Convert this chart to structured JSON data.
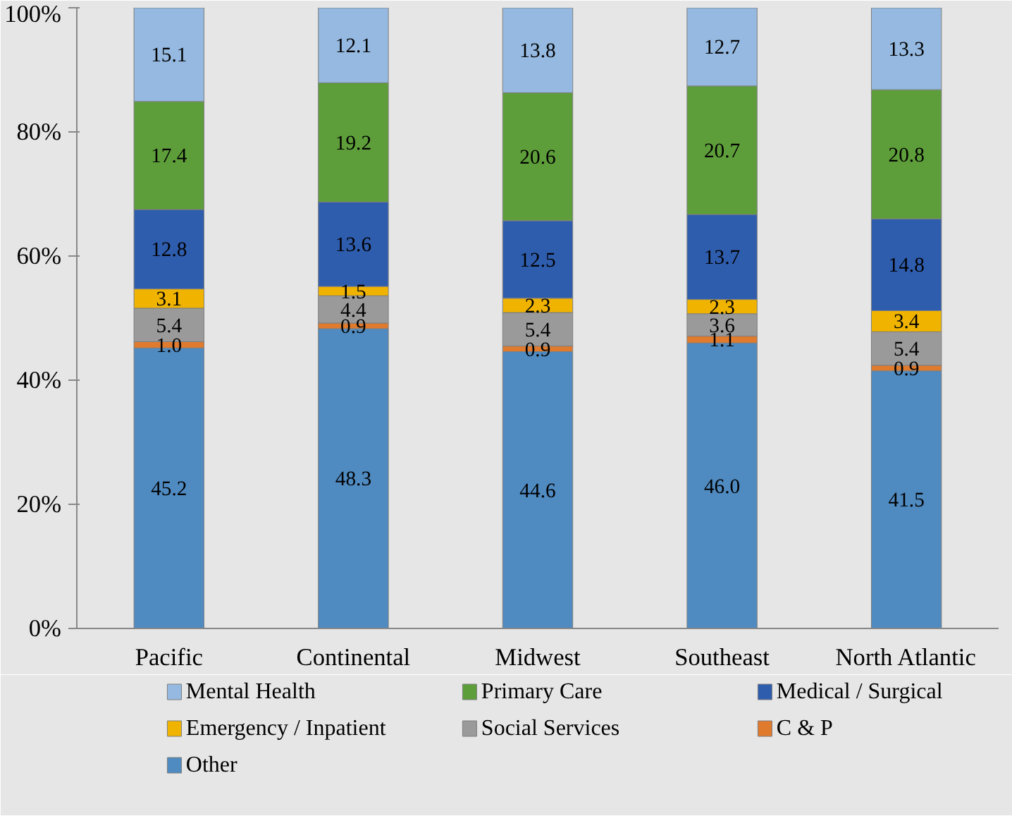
{
  "chart_data": {
    "type": "bar",
    "stacked": true,
    "legend": "bottom",
    "categories": [
      "Pacific",
      "Continental",
      "Midwest",
      "Southeast",
      "North Atlantic"
    ],
    "ylim": [
      0,
      100
    ],
    "yticks": [
      {
        "value": 0,
        "label": "0%"
      },
      {
        "value": 20,
        "label": "20%"
      },
      {
        "value": 40,
        "label": "40%"
      },
      {
        "value": 60,
        "label": "60%"
      },
      {
        "value": 80,
        "label": "80%"
      },
      {
        "value": 100,
        "label": "100%"
      }
    ],
    "series": [
      {
        "name": "Other",
        "color": "#4f8ac0",
        "values": [
          45.2,
          48.3,
          44.6,
          46.0,
          41.5
        ],
        "value_labels": [
          "45.2",
          "48.3",
          "44.6",
          "46.0",
          "41.5"
        ]
      },
      {
        "name": "C & P",
        "color": "#e07b2e",
        "values": [
          1.0,
          0.9,
          0.9,
          1.1,
          0.9
        ],
        "value_labels": [
          "1.0",
          "0.9",
          "0.9",
          "1.1",
          "0.9"
        ]
      },
      {
        "name": "Social Services",
        "color": "#9a9a9a",
        "values": [
          5.4,
          4.4,
          5.4,
          3.6,
          5.4
        ],
        "value_labels": [
          "5.4",
          "4.4",
          "5.4",
          "3.6",
          "5.4"
        ]
      },
      {
        "name": "Emergency / Inpatient",
        "color": "#f0b400",
        "values": [
          3.1,
          1.5,
          2.3,
          2.3,
          3.4
        ],
        "value_labels": [
          "3.1",
          "1.5",
          "2.3",
          "2.3",
          "3.4"
        ]
      },
      {
        "name": "Medical / Surgical",
        "color": "#2f5dae",
        "values": [
          12.8,
          13.6,
          12.5,
          13.7,
          14.8
        ],
        "value_labels": [
          "12.8",
          "13.6",
          "12.5",
          "13.7",
          "14.8"
        ]
      },
      {
        "name": "Primary Care",
        "color": "#5e9e3a",
        "values": [
          17.4,
          19.2,
          20.6,
          20.7,
          20.8
        ],
        "value_labels": [
          "17.4",
          "19.2",
          "20.6",
          "20.7",
          "20.8"
        ]
      },
      {
        "name": "Mental Health",
        "color": "#95b9e0",
        "values": [
          15.1,
          12.1,
          13.8,
          12.7,
          13.3
        ],
        "value_labels": [
          "15.1",
          "12.1",
          "13.8",
          "12.7",
          "13.3"
        ]
      }
    ]
  }
}
